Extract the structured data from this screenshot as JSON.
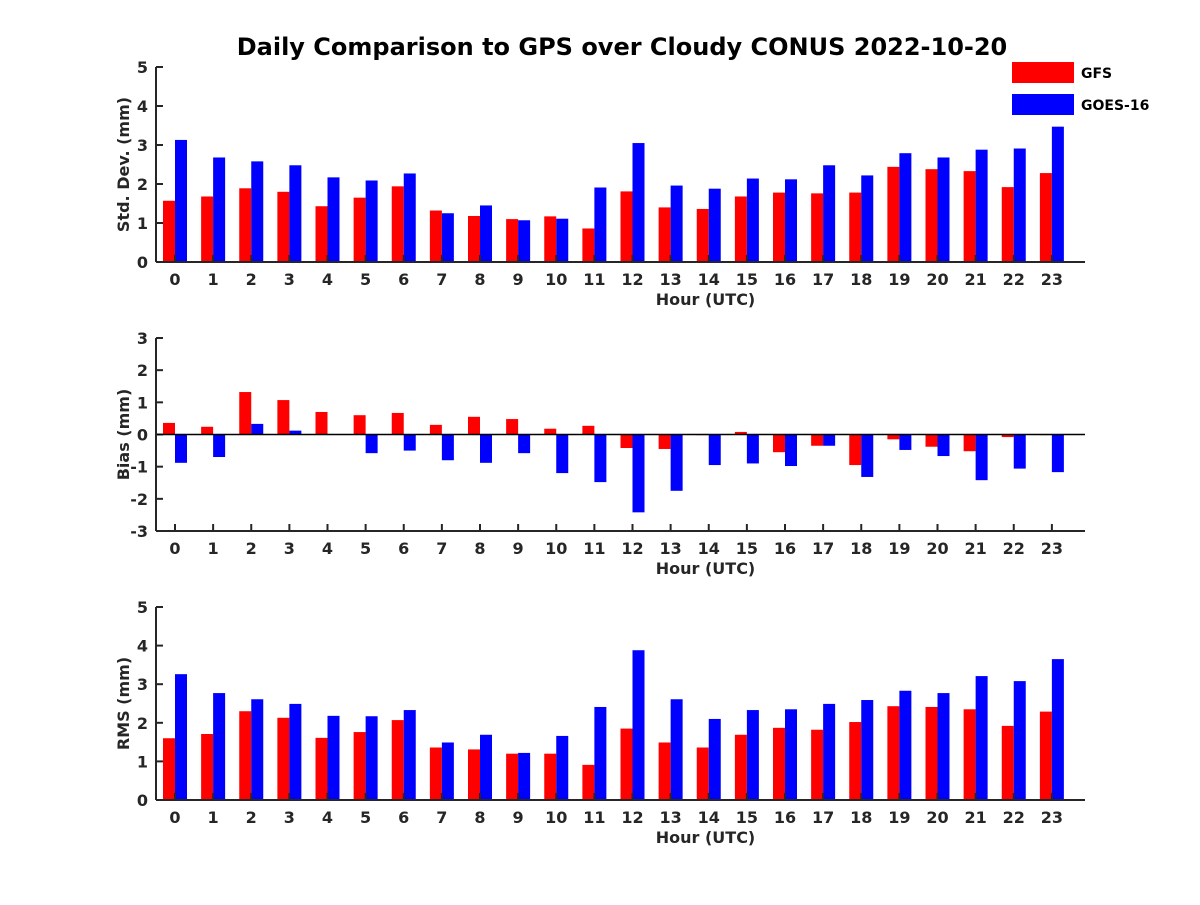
{
  "figure": {
    "title": "Daily Comparison to GPS over Cloudy CONUS 2022-10-20"
  },
  "legend": {
    "placement": "top-right",
    "items": [
      {
        "label": "GFS",
        "color": "#ff0000"
      },
      {
        "label": "GOES-16",
        "color": "#0000ff"
      }
    ]
  },
  "chart_data": [
    {
      "type": "bar",
      "title": "Daily Comparison to GPS over Cloudy CONUS 2022-10-20",
      "xlabel": "Hour (UTC)",
      "ylabel": "Std. Dev. (mm)",
      "ylim": [
        0,
        5
      ],
      "yticks": [
        0,
        1,
        2,
        3,
        4,
        5
      ],
      "categories": [
        "0",
        "1",
        "2",
        "3",
        "4",
        "5",
        "6",
        "7",
        "8",
        "9",
        "10",
        "11",
        "12",
        "13",
        "14",
        "15",
        "16",
        "17",
        "18",
        "19",
        "20",
        "21",
        "22",
        "23"
      ],
      "series": [
        {
          "name": "GFS",
          "color": "#ff0000",
          "values": [
            1.57,
            1.68,
            1.89,
            1.8,
            1.43,
            1.65,
            1.94,
            1.32,
            1.18,
            1.1,
            1.17,
            0.86,
            1.81,
            1.4,
            1.36,
            1.68,
            1.78,
            1.76,
            1.78,
            2.44,
            2.38,
            2.33,
            1.92,
            2.28
          ]
        },
        {
          "name": "GOES-16",
          "color": "#0000ff",
          "values": [
            3.13,
            2.68,
            2.58,
            2.48,
            2.17,
            2.09,
            2.27,
            1.25,
            1.45,
            1.07,
            1.11,
            1.91,
            3.05,
            1.96,
            1.88,
            2.14,
            2.12,
            2.48,
            2.22,
            2.79,
            2.68,
            2.88,
            2.91,
            3.47
          ]
        }
      ]
    },
    {
      "type": "bar",
      "xlabel": "Hour (UTC)",
      "ylabel": "Bias (mm)",
      "ylim": [
        -3,
        3
      ],
      "yticks": [
        -3,
        -2,
        -1,
        0,
        1,
        2,
        3
      ],
      "categories": [
        "0",
        "1",
        "2",
        "3",
        "4",
        "5",
        "6",
        "7",
        "8",
        "9",
        "10",
        "11",
        "12",
        "13",
        "14",
        "15",
        "16",
        "17",
        "18",
        "19",
        "20",
        "21",
        "22",
        "23"
      ],
      "series": [
        {
          "name": "GFS",
          "color": "#ff0000",
          "values": [
            0.36,
            0.24,
            1.32,
            1.07,
            0.7,
            0.6,
            0.67,
            0.3,
            0.55,
            0.48,
            0.18,
            0.27,
            -0.42,
            -0.45,
            -0.02,
            0.08,
            -0.55,
            -0.35,
            -0.95,
            -0.15,
            -0.38,
            -0.52,
            -0.08,
            -0.02
          ]
        },
        {
          "name": "GOES-16",
          "color": "#0000ff",
          "values": [
            -0.88,
            -0.7,
            0.33,
            0.12,
            0.0,
            -0.58,
            -0.5,
            -0.8,
            -0.88,
            -0.58,
            -1.2,
            -1.48,
            -2.42,
            -1.75,
            -0.95,
            -0.9,
            -0.98,
            -0.35,
            -1.32,
            -0.48,
            -0.67,
            -1.42,
            -1.06,
            -1.17
          ]
        }
      ]
    },
    {
      "type": "bar",
      "xlabel": "Hour (UTC)",
      "ylabel": "RMS (mm)",
      "ylim": [
        0,
        5
      ],
      "yticks": [
        0,
        1,
        2,
        3,
        4,
        5
      ],
      "categories": [
        "0",
        "1",
        "2",
        "3",
        "4",
        "5",
        "6",
        "7",
        "8",
        "9",
        "10",
        "11",
        "12",
        "13",
        "14",
        "15",
        "16",
        "17",
        "18",
        "19",
        "20",
        "21",
        "22",
        "23"
      ],
      "series": [
        {
          "name": "GFS",
          "color": "#ff0000",
          "values": [
            1.6,
            1.71,
            2.3,
            2.13,
            1.61,
            1.76,
            2.07,
            1.36,
            1.31,
            1.2,
            1.2,
            0.91,
            1.85,
            1.49,
            1.36,
            1.69,
            1.87,
            1.82,
            2.02,
            2.43,
            2.41,
            2.35,
            1.92,
            2.29
          ]
        },
        {
          "name": "GOES-16",
          "color": "#0000ff",
          "values": [
            3.26,
            2.77,
            2.61,
            2.49,
            2.18,
            2.17,
            2.33,
            1.49,
            1.69,
            1.22,
            1.66,
            2.41,
            3.88,
            2.61,
            2.1,
            2.33,
            2.35,
            2.49,
            2.59,
            2.83,
            2.77,
            3.21,
            3.08,
            3.65
          ]
        }
      ]
    }
  ]
}
